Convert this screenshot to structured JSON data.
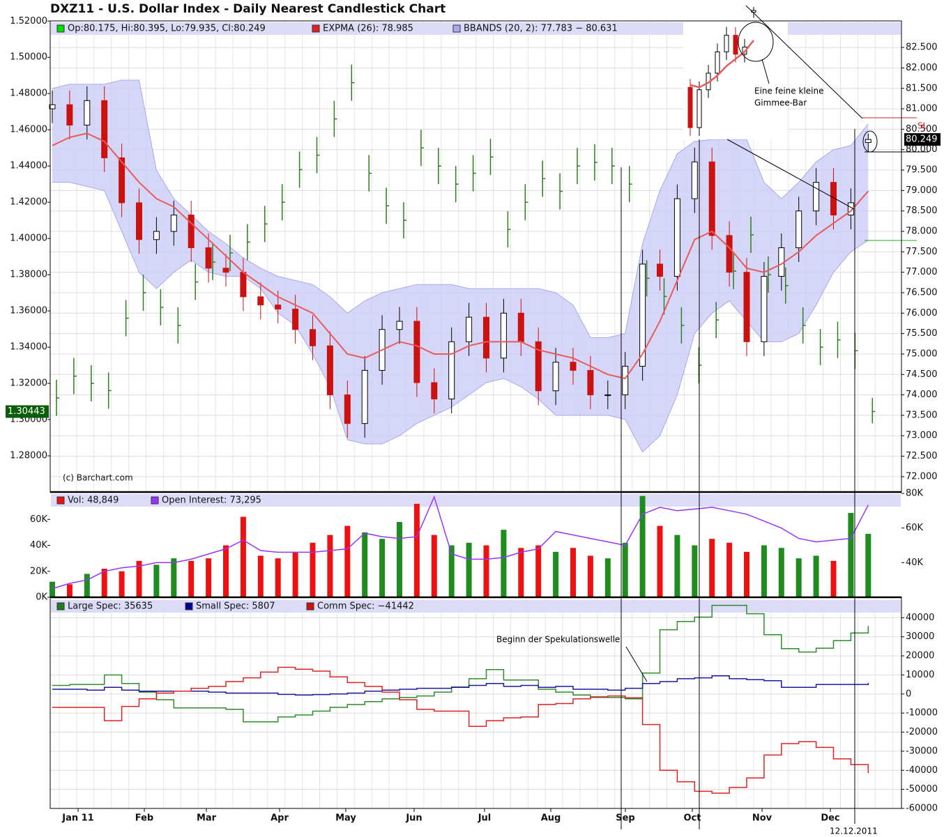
{
  "chart_data": [
    {
      "type": "candlestick",
      "title": "DXZ11 - U.S. Dollar Index - Daily Nearest Candlestick Chart",
      "copyright": "(c) Barchart.com",
      "legend": [
        {
          "text": "Op:80.175, Hi:80.395, Lo:79.935, Cl:80.249",
          "color": "#00dd00"
        },
        {
          "text": "EXPMA (26): 78.985",
          "color": "#dd2222"
        },
        {
          "text": "BBANDS (20, 2): 77.783 − 80.631",
          "color": "#aaaaee"
        }
      ],
      "up_color": "#000000",
      "down_color": "#cc1111",
      "open": [
        81.0,
        81.1,
        80.6,
        81.2,
        79.8,
        78.7,
        77.8,
        78.0,
        78.4,
        77.6,
        77.1,
        77.0,
        76.4,
        76.2,
        76.1,
        75.6,
        75.2,
        74.0,
        73.3,
        74.6,
        75.6,
        75.8,
        74.3,
        73.9,
        75.3,
        75.9,
        74.9,
        76.0,
        75.3,
        74.1,
        74.8,
        74.6,
        74.0,
        74.0,
        74.7,
        77.2,
        76.9,
        78.8,
        79.7,
        77.9,
        77.0,
        75.3,
        76.9,
        77.6,
        78.5,
        79.2,
        78.4,
        80.175
      ],
      "high": [
        81.45,
        81.45,
        81.55,
        81.55,
        80.15,
        79.05,
        78.35,
        78.75,
        78.75,
        77.95,
        77.45,
        77.35,
        76.75,
        76.55,
        76.45,
        75.95,
        75.55,
        74.35,
        74.95,
        75.95,
        76.15,
        76.15,
        74.65,
        75.65,
        76.25,
        76.25,
        76.35,
        76.35,
        75.65,
        75.15,
        75.15,
        74.95,
        74.35,
        75.05,
        77.55,
        77.55,
        79.15,
        80.05,
        80.05,
        78.25,
        77.35,
        77.25,
        77.95,
        78.85,
        79.55,
        79.55,
        79.05,
        80.395
      ],
      "low": [
        80.65,
        80.25,
        80.25,
        79.45,
        78.35,
        77.45,
        77.45,
        77.65,
        77.25,
        76.75,
        76.65,
        76.05,
        75.85,
        75.75,
        75.25,
        74.85,
        73.65,
        72.95,
        72.95,
        74.25,
        75.25,
        73.95,
        73.55,
        73.55,
        74.95,
        74.55,
        74.55,
        74.95,
        73.75,
        73.75,
        74.25,
        73.65,
        73.65,
        73.65,
        74.35,
        76.55,
        76.55,
        78.45,
        77.55,
        76.65,
        74.95,
        74.95,
        76.55,
        77.25,
        78.15,
        78.05,
        78.05,
        79.935
      ],
      "close": [
        81.1,
        80.6,
        81.2,
        79.8,
        78.7,
        77.8,
        78.0,
        78.4,
        77.6,
        77.1,
        77.0,
        76.4,
        76.2,
        76.1,
        75.6,
        75.2,
        74.0,
        73.3,
        74.6,
        75.6,
        75.8,
        74.3,
        73.9,
        75.3,
        75.9,
        74.9,
        76.0,
        75.3,
        74.1,
        74.8,
        74.6,
        74.0,
        74.0,
        74.7,
        77.2,
        76.9,
        78.8,
        79.7,
        77.9,
        77.0,
        75.3,
        76.9,
        77.6,
        78.5,
        79.2,
        78.4,
        78.7,
        80.249
      ],
      "expma": {
        "color": "#e85a5a",
        "values": [
          80.1,
          80.3,
          80.4,
          80.2,
          79.7,
          79.2,
          78.8,
          78.6,
          78.2,
          77.8,
          77.4,
          77.0,
          76.7,
          76.4,
          76.2,
          76.0,
          75.5,
          75.0,
          74.9,
          75.1,
          75.3,
          75.2,
          75.0,
          75.0,
          75.2,
          75.3,
          75.3,
          75.3,
          75.1,
          75.0,
          74.9,
          74.7,
          74.5,
          74.4,
          75.0,
          75.8,
          76.8,
          77.8,
          78.0,
          77.6,
          77.1,
          77.0,
          77.2,
          77.5,
          77.9,
          78.2,
          78.5,
          78.985
        ]
      },
      "bbands": {
        "color": "#ccccf6",
        "upper": [
          81.5,
          81.6,
          81.6,
          81.6,
          81.7,
          81.7,
          79.5,
          78.8,
          78.4,
          78.0,
          77.7,
          77.35,
          77.1,
          76.9,
          76.8,
          76.7,
          76.4,
          76.0,
          76.3,
          76.5,
          76.6,
          76.7,
          76.7,
          76.7,
          76.6,
          76.6,
          76.6,
          76.6,
          76.6,
          76.5,
          76.2,
          75.4,
          75.4,
          75.5,
          77.7,
          79.0,
          79.9,
          80.2,
          80.25,
          80.25,
          80.25,
          79.2,
          78.8,
          79.2,
          79.7,
          80.0,
          80.1,
          80.631
        ],
        "lower": [
          79.2,
          79.2,
          79.1,
          79.0,
          78.0,
          77.0,
          76.6,
          77.0,
          77.3,
          77.0,
          76.9,
          76.9,
          76.6,
          76.0,
          75.7,
          75.0,
          74.2,
          72.9,
          72.8,
          72.8,
          73.0,
          73.3,
          73.5,
          73.7,
          74.0,
          74.3,
          74.4,
          74.2,
          73.9,
          73.5,
          73.5,
          73.5,
          73.5,
          73.4,
          72.6,
          73.0,
          74.0,
          75.5,
          76.0,
          76.3,
          75.8,
          75.3,
          75.3,
          75.5,
          76.2,
          77.0,
          77.5,
          77.783
        ]
      },
      "ylim": [
        71.64,
        83.15
      ],
      "yticks": [
        {
          "value": 72,
          "label": "72.000"
        },
        {
          "value": 72.5,
          "label": "72.500"
        },
        {
          "value": 73,
          "label": "73.000"
        },
        {
          "value": 73.5,
          "label": "73.500"
        },
        {
          "value": 74,
          "label": "74.000"
        },
        {
          "value": 74.5,
          "label": "74.500"
        },
        {
          "value": 75,
          "label": "75.000"
        },
        {
          "value": 75.5,
          "label": "75.500"
        },
        {
          "value": 76,
          "label": "76.000"
        },
        {
          "value": 76.5,
          "label": "76.500"
        },
        {
          "value": 77,
          "label": "77.000"
        },
        {
          "value": 77.5,
          "label": "77.500"
        },
        {
          "value": 78,
          "label": "78.000"
        },
        {
          "value": 78.5,
          "label": "78.500"
        },
        {
          "value": 79,
          "label": "79.000"
        },
        {
          "value": 79.5,
          "label": "79.500"
        },
        {
          "value": 80,
          "label": "80.000"
        },
        {
          "value": 80.5,
          "label": "80.500"
        },
        {
          "value": 81,
          "label": "81.000"
        },
        {
          "value": 81.5,
          "label": "81.500"
        },
        {
          "value": 82,
          "label": "82.000"
        },
        {
          "value": 82.5,
          "label": "82.500"
        }
      ],
      "last_label": "80.249",
      "grid": true,
      "eur": {
        "color": "#2e7d1e",
        "last_label": "1.30443",
        "high": [
          1.322,
          1.334,
          1.33,
          1.326,
          1.366,
          1.38,
          1.372,
          1.362,
          1.386,
          1.397,
          1.402,
          1.408,
          1.418,
          1.43,
          1.448,
          1.456,
          1.476,
          1.496,
          1.446,
          1.428,
          1.42,
          1.46,
          1.45,
          1.44,
          1.446,
          1.455,
          1.415,
          1.43,
          1.443,
          1.436,
          1.45,
          1.452,
          1.45,
          1.44,
          1.388,
          1.378,
          1.362,
          1.34,
          1.365,
          1.392,
          1.412,
          1.39,
          1.384,
          1.362,
          1.35,
          1.354,
          1.348,
          1.312
        ],
        "low": [
          1.302,
          1.314,
          1.31,
          1.306,
          1.346,
          1.36,
          1.352,
          1.342,
          1.366,
          1.377,
          1.382,
          1.388,
          1.398,
          1.41,
          1.428,
          1.436,
          1.456,
          1.476,
          1.426,
          1.408,
          1.4,
          1.44,
          1.43,
          1.42,
          1.426,
          1.435,
          1.395,
          1.41,
          1.423,
          1.416,
          1.43,
          1.432,
          1.43,
          1.42,
          1.368,
          1.358,
          1.342,
          1.32,
          1.345,
          1.372,
          1.392,
          1.37,
          1.364,
          1.342,
          1.33,
          1.334,
          1.328,
          1.298
        ],
        "close": [
          1.312,
          1.324,
          1.32,
          1.316,
          1.356,
          1.37,
          1.362,
          1.352,
          1.376,
          1.387,
          1.392,
          1.398,
          1.408,
          1.42,
          1.438,
          1.446,
          1.466,
          1.486,
          1.436,
          1.418,
          1.41,
          1.45,
          1.44,
          1.43,
          1.436,
          1.445,
          1.405,
          1.42,
          1.433,
          1.426,
          1.44,
          1.442,
          1.44,
          1.43,
          1.378,
          1.368,
          1.352,
          1.33,
          1.355,
          1.382,
          1.402,
          1.38,
          1.374,
          1.352,
          1.34,
          1.344,
          1.338,
          1.30443
        ],
        "ylim": [
          1.2604,
          1.5201
        ],
        "yticks": [
          {
            "value": 1.28,
            "label": "1.28000"
          },
          {
            "value": 1.3,
            "label": "1.30000"
          },
          {
            "value": 1.32,
            "label": "1.32000"
          },
          {
            "value": 1.34,
            "label": "1.34000"
          },
          {
            "value": 1.36,
            "label": "1.36000"
          },
          {
            "value": 1.38,
            "label": "1.38000"
          },
          {
            "value": 1.4,
            "label": "1.40000"
          },
          {
            "value": 1.42,
            "label": "1.42000"
          },
          {
            "value": 1.44,
            "label": "1.44000"
          },
          {
            "value": 1.46,
            "label": "1.46000"
          },
          {
            "value": 1.48,
            "label": "1.48000"
          },
          {
            "value": 1.5,
            "label": "1.50000"
          },
          {
            "value": 1.52,
            "label": "1.52000"
          }
        ]
      },
      "annotations": [
        "Eine feine kleine",
        "Gimmee-Bar",
        "SL"
      ]
    },
    {
      "type": "bar",
      "legend": [
        {
          "text": "Vol: 48,849",
          "color": "#ee1111"
        },
        {
          "text": "Open Interest: 73,295",
          "color": "#9933ff"
        }
      ],
      "up_color": "#1e8c1e",
      "down_color": "#ee1111",
      "values": [
        12000,
        10000,
        18000,
        22000,
        20000,
        28000,
        25000,
        30000,
        28000,
        30000,
        40000,
        62000,
        32000,
        30000,
        35000,
        42000,
        48000,
        55000,
        50000,
        45000,
        58000,
        72000,
        48000,
        40000,
        42000,
        40000,
        52000,
        38000,
        40000,
        35000,
        38000,
        32000,
        30000,
        42000,
        78000,
        55000,
        48000,
        40000,
        45000,
        42000,
        35000,
        40000,
        38000,
        30000,
        32000,
        28000,
        65000,
        48849
      ],
      "ylim": [
        0,
        80000
      ],
      "yticks": [
        {
          "value": 0,
          "label": "0K"
        },
        {
          "value": 20000,
          "label": "20K"
        },
        {
          "value": 40000,
          "label": "40K"
        },
        {
          "value": 60000,
          "label": "60K"
        }
      ],
      "series": [
        {
          "name": "Open Interest",
          "color": "#9933ff",
          "axis": "y2",
          "values": [
            25000,
            28000,
            30000,
            35000,
            37000,
            38000,
            40000,
            40000,
            42000,
            45000,
            48000,
            53000,
            47000,
            46000,
            46000,
            46000,
            47000,
            48000,
            57000,
            55000,
            54000,
            55000,
            78000,
            45000,
            42000,
            42000,
            43000,
            46000,
            48000,
            58000,
            56000,
            54000,
            52000,
            50000,
            68000,
            72000,
            70000,
            71000,
            72000,
            70000,
            68000,
            64000,
            60000,
            54000,
            52000,
            53000,
            54000,
            73295
          ]
        }
      ],
      "y2lim": [
        20000,
        80000
      ],
      "y2ticks": [
        {
          "value": 40000,
          "label": "40K"
        },
        {
          "value": 60000,
          "label": "60K"
        },
        {
          "value": 80000,
          "label": "80K"
        }
      ]
    },
    {
      "type": "step",
      "legend": [
        {
          "text": "Large Spec: 35635",
          "color": "#1e7d1e"
        },
        {
          "text": "Small Spec: 5807",
          "color": "#000099"
        },
        {
          "text": "Comm Spec: −41442",
          "color": "#cc1111"
        }
      ],
      "series": [
        {
          "name": "Large Spec",
          "color": "#2e8b2e",
          "values": [
            4500,
            5000,
            5000,
            10000,
            5500,
            1000,
            -3000,
            -7300,
            -7300,
            -7300,
            -8000,
            -14600,
            -14600,
            -12000,
            -11000,
            -9000,
            -7000,
            -5500,
            -4000,
            -2500,
            -1800,
            -1000,
            1000,
            3700,
            8000,
            12800,
            7300,
            7300,
            2500,
            1000,
            -500,
            -1800,
            -1800,
            -2500,
            11000,
            33700,
            38000,
            40300,
            46500,
            46500,
            42100,
            31100,
            23800,
            22000,
            24000,
            28000,
            32000,
            35635
          ]
        },
        {
          "name": "Small Spec",
          "color": "#1a1aa0",
          "values": [
            2500,
            2500,
            2000,
            3500,
            2000,
            1500,
            1500,
            1500,
            1500,
            1000,
            500,
            500,
            500,
            -200,
            -500,
            -300,
            0,
            500,
            1500,
            2000,
            2500,
            3000,
            3000,
            3500,
            4500,
            5500,
            4000,
            4500,
            3500,
            4000,
            2500,
            2500,
            2000,
            3000,
            5500,
            6500,
            8000,
            8500,
            9500,
            8000,
            7500,
            7000,
            3500,
            3500,
            5000,
            5000,
            5000,
            5807
          ]
        },
        {
          "name": "Comm Spec",
          "color": "#dd2222",
          "values": [
            -7000,
            -7000,
            -7000,
            -14000,
            -6500,
            -2500,
            500,
            1500,
            3000,
            4000,
            6500,
            8500,
            11500,
            14000,
            13000,
            12000,
            9000,
            6000,
            4000,
            1000,
            -3000,
            -8000,
            -9000,
            -9000,
            -17000,
            -14000,
            -12500,
            -12000,
            -5500,
            -5000,
            -2500,
            -1500,
            -1000,
            -2000,
            -16000,
            -40000,
            -46000,
            -51000,
            -52000,
            -49000,
            -44000,
            -32000,
            -26000,
            -25000,
            -28000,
            -34000,
            -37000,
            -41442
          ]
        }
      ],
      "ylim": [
        -60000,
        50000
      ],
      "yticks": [
        -60000,
        -50000,
        -40000,
        -30000,
        -20000,
        -10000,
        0,
        10000,
        20000,
        30000,
        40000
      ],
      "grid": true,
      "months": [
        "Jan 11",
        "Feb",
        "Mar",
        "Apr",
        "May",
        "Jun",
        "Jul",
        "Aug",
        "Sep",
        "Oct",
        "Nov",
        "Dec"
      ],
      "annotations": [
        "Beginn der Spekulationswelle",
        "12.12.2011"
      ]
    }
  ]
}
